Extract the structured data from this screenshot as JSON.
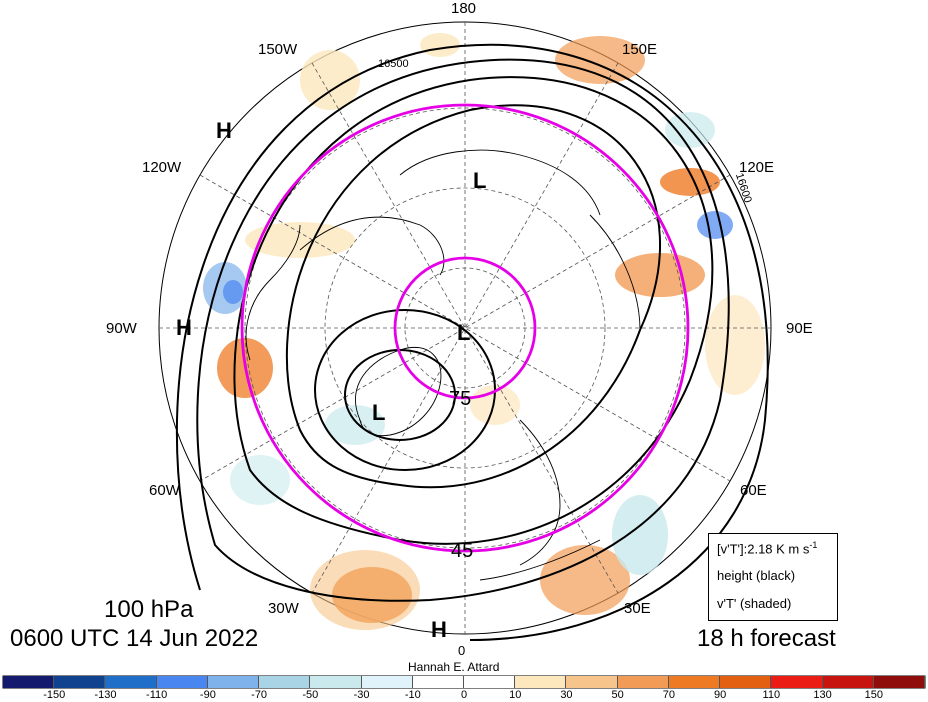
{
  "map": {
    "longitude_labels": [
      "180",
      "150E",
      "120E",
      "90E",
      "60E",
      "30E",
      "0",
      "30W",
      "60W",
      "90W",
      "120W",
      "150W"
    ],
    "contour_labels": [
      "16500",
      "16600"
    ],
    "circle_labels": [
      "75",
      "45"
    ],
    "pressure_systems": [
      "H",
      "H",
      "H",
      "L",
      "L",
      "L"
    ]
  },
  "titles": {
    "level": "100 hPa",
    "time": "0600 UTC 14 Jun 2022",
    "forecast": "18 h forecast",
    "author": "Hannah E. Attard"
  },
  "legend": {
    "line1": "[v'T']:2.18 K m s",
    "line1_sup": "-1",
    "line2": "height (black)",
    "line3": "v'T' (shaded)"
  },
  "colorbar": {
    "ticks": [
      "-150",
      "-130",
      "-110",
      "-90",
      "-70",
      "-50",
      "-30",
      "-10",
      "0",
      "10",
      "30",
      "50",
      "70",
      "90",
      "110",
      "130",
      "150"
    ],
    "colors": [
      "#141a6e",
      "#10428f",
      "#1f6fc9",
      "#4a86ef",
      "#7fb2ea",
      "#a9d4e6",
      "#c9e9ec",
      "#e1f3fa",
      "#ffffff",
      "#ffffff",
      "#fde7bd",
      "#f7c58b",
      "#f29b56",
      "#ee7a24",
      "#e35f12",
      "#eb1c14",
      "#c8140e",
      "#8f0d0a"
    ]
  }
}
